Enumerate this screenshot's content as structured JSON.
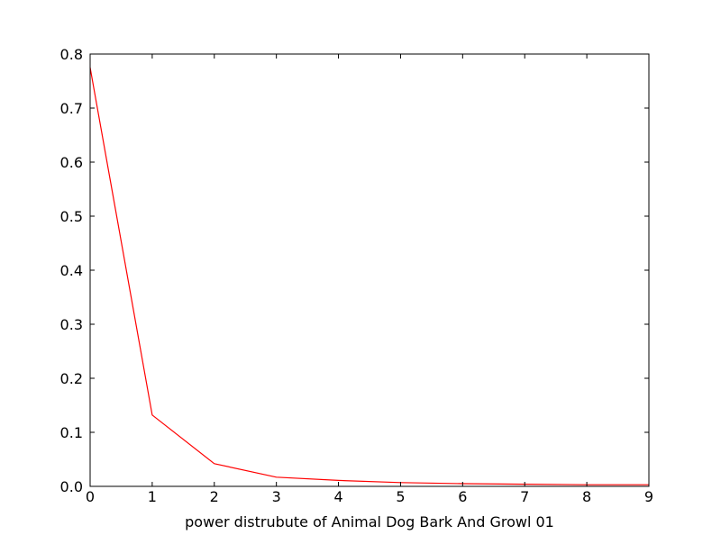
{
  "chart_data": {
    "type": "line",
    "title": "",
    "xlabel": "power distrubute of Animal Dog Bark And Growl 01",
    "ylabel": "",
    "xlim": [
      0,
      9
    ],
    "ylim": [
      0,
      0.8
    ],
    "xticks": [
      "0",
      "1",
      "2",
      "3",
      "4",
      "5",
      "6",
      "7",
      "8",
      "9"
    ],
    "yticks": [
      "0.0",
      "0.1",
      "0.2",
      "0.3",
      "0.4",
      "0.5",
      "0.6",
      "0.7",
      "0.8"
    ],
    "grid": false,
    "legend": "none",
    "series": [
      {
        "color": "#ff0000",
        "x": [
          0,
          1,
          2,
          3,
          4,
          5,
          6,
          7,
          8,
          9
        ],
        "y": [
          0.775,
          0.132,
          0.042,
          0.017,
          0.011,
          0.007,
          0.005,
          0.004,
          0.003,
          0.003
        ]
      }
    ]
  }
}
